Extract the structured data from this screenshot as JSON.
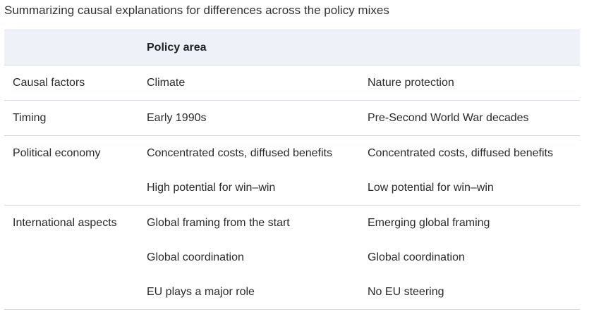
{
  "caption": "Summarizing causal explanations for differences across the policy mixes",
  "table": {
    "header": {
      "col1": "",
      "col2": "Policy area",
      "col3": ""
    },
    "rows": [
      {
        "factor": "Causal factors",
        "climate": "Climate",
        "nature": "Nature protection"
      },
      {
        "factor": "Timing",
        "climate": "Early 1990s",
        "nature": "Pre-Second World War decades"
      },
      {
        "factor": "Political economy",
        "climate": "Concentrated costs, diffused benefits",
        "nature": "Concentrated costs, diffused benefits"
      },
      {
        "factor": "",
        "climate": "High potential for win–win",
        "nature": "Low potential for win–win"
      },
      {
        "factor": "International aspects",
        "climate": "Global framing from the start",
        "nature": "Emerging global framing"
      },
      {
        "factor": "",
        "climate": "Global coordination",
        "nature": "Global coordination"
      },
      {
        "factor": "",
        "climate": "EU plays a major role",
        "nature": "No EU steering"
      }
    ]
  }
}
